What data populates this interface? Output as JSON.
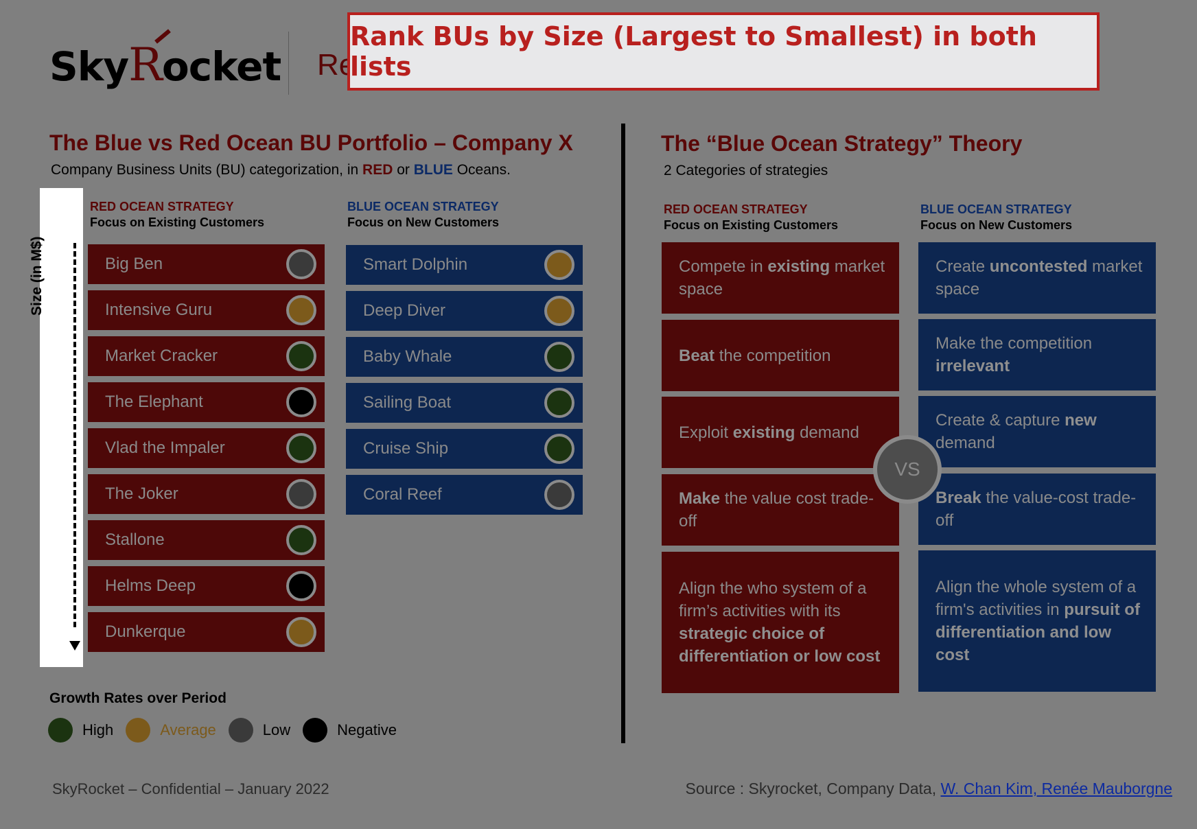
{
  "logo": {
    "pre": "Sky",
    "r": "R",
    "post": "ocket"
  },
  "header_partial": "Re",
  "banner": {
    "text": "Rank BUs by Size (Largest to Smallest) in both lists"
  },
  "left": {
    "title": "The Blue vs Red Ocean BU Portfolio – Company X",
    "subtitle_pre": "Company Business Units (BU) categorization, in ",
    "subtitle_red": "RED",
    "subtitle_or": " or ",
    "subtitle_blue": "BLUE",
    "subtitle_post": " Oceans.",
    "size_label": "Size (in M$)",
    "red_head": "RED OCEAN STRATEGY",
    "red_sub": "Focus on Existing Customers",
    "blue_head": "BLUE OCEAN STRATEGY",
    "blue_sub": "Focus on New Customers",
    "red_items": [
      {
        "name": "Big Ben",
        "growth": "Low"
      },
      {
        "name": "Intensive Guru",
        "growth": "Average"
      },
      {
        "name": "Market Cracker",
        "growth": "High"
      },
      {
        "name": "The Elephant",
        "growth": "Negative"
      },
      {
        "name": "Vlad the Impaler",
        "growth": "High"
      },
      {
        "name": "The Joker",
        "growth": "Low"
      },
      {
        "name": "Stallone",
        "growth": "High"
      },
      {
        "name": "Helms Deep",
        "growth": "Negative"
      },
      {
        "name": "Dunkerque",
        "growth": "Average"
      }
    ],
    "blue_items": [
      {
        "name": "Smart Dolphin",
        "growth": "Average"
      },
      {
        "name": "Deep Diver",
        "growth": "Average"
      },
      {
        "name": "Baby Whale",
        "growth": "High"
      },
      {
        "name": "Sailing Boat",
        "growth": "High"
      },
      {
        "name": "Cruise Ship",
        "growth": "High"
      },
      {
        "name": "Coral Reef",
        "growth": "Low"
      }
    ]
  },
  "growth_colors": {
    "High": "#1b3310",
    "Average": "#7c5a1b",
    "Low": "#3a3a3a",
    "Negative": "#000000"
  },
  "legend": {
    "title": "Growth Rates over Period",
    "items": [
      {
        "label": "High",
        "color": "#1b3310",
        "text_color": "#000000"
      },
      {
        "label": "Average",
        "color": "#7c5a1b",
        "text_color": "#7c5a1b"
      },
      {
        "label": "Low",
        "color": "#3a3a3a",
        "text_color": "#000000"
      },
      {
        "label": "Negative",
        "color": "#000000",
        "text_color": "#000000"
      }
    ]
  },
  "right": {
    "title": "The “Blue Ocean Strategy” Theory",
    "subtitle": "2 Categories of strategies",
    "red_head": "RED OCEAN STRATEGY",
    "red_sub": "Focus on Existing Customers",
    "blue_head": "BLUE OCEAN STRATEGY",
    "blue_sub": "Focus on New Customers",
    "vs": "VS",
    "red_items": [
      [
        {
          "t": "Compete in "
        },
        {
          "t": "existing",
          "b": true
        },
        {
          "t": " market space"
        }
      ],
      [
        {
          "t": "Beat",
          "b": true
        },
        {
          "t": " the competition"
        }
      ],
      [
        {
          "t": "Exploit "
        },
        {
          "t": "existing",
          "b": true
        },
        {
          "t": " demand"
        }
      ],
      [
        {
          "t": "Make",
          "b": true
        },
        {
          "t": " the value cost trade-off"
        }
      ],
      [
        {
          "t": "Align the who system of a firm’s activities with its "
        },
        {
          "t": "strategic choice of differentiation or low cost",
          "b": true
        }
      ]
    ],
    "blue_items": [
      [
        {
          "t": "Create "
        },
        {
          "t": "uncontested",
          "b": true
        },
        {
          "t": " market space"
        }
      ],
      [
        {
          "t": "Make the competition "
        },
        {
          "t": "irrelevant",
          "b": true
        }
      ],
      [
        {
          "t": "Create & capture "
        },
        {
          "t": "new",
          "b": true
        },
        {
          "t": " demand"
        }
      ],
      [
        {
          "t": "Break",
          "b": true
        },
        {
          "t": " the value-cost trade-off"
        }
      ],
      [
        {
          "t": "Align the whole system of a firm's activities in "
        },
        {
          "t": "pursuit of differentiation and low cost",
          "b": true
        }
      ]
    ]
  },
  "footer": {
    "left": "SkyRocket – Confidential – January 2022",
    "source_prefix": "Source : Skyrocket, Company Data, ",
    "source_link": "W. Chan Kim, Renée Mauborgne"
  }
}
